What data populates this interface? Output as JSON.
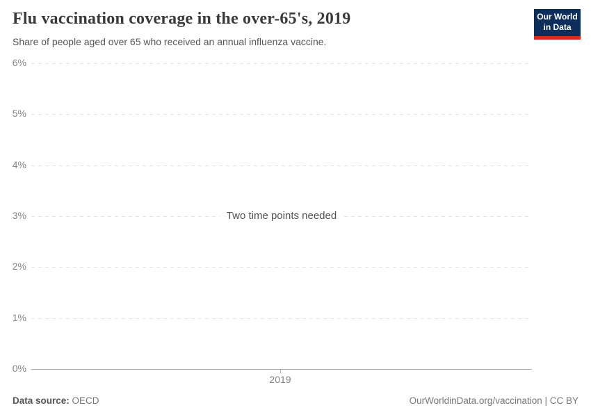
{
  "header": {
    "title": "Flu vaccination coverage in the over-65's, 2019",
    "subtitle": "Share of people aged over 65 who received an annual influenza vaccine.",
    "logo": {
      "line1": "Our World",
      "line2": "in Data",
      "bg_color": "#0d2e5a",
      "accent_color": "#e0271e"
    }
  },
  "chart_data": {
    "type": "line",
    "title": "Flu vaccination coverage in the over-65's, 2019",
    "subtitle": "Share of people aged over 65 who received an annual influenza vaccine.",
    "series": [],
    "empty_state_message": "Two time points needed",
    "x_ticks": [
      "2019"
    ],
    "y_ticks": [
      "0%",
      "1%",
      "2%",
      "3%",
      "4%",
      "5%",
      "6%"
    ],
    "ylim": [
      0,
      6
    ],
    "xlabel": "",
    "ylabel": "",
    "grid": "horizontal-dashed",
    "legend": "none"
  },
  "footer": {
    "source_label": "Data source:",
    "source_value": "OECD",
    "citation": "OurWorldinData.org/vaccination | CC BY"
  },
  "colors": {
    "title_text": "#3a3a3a",
    "subtitle_text": "#555555",
    "axis_label": "#858585",
    "gridline": "#e3e3e3",
    "axis_line": "#adadad",
    "message_text": "#525252",
    "footer_text": "#777777"
  }
}
